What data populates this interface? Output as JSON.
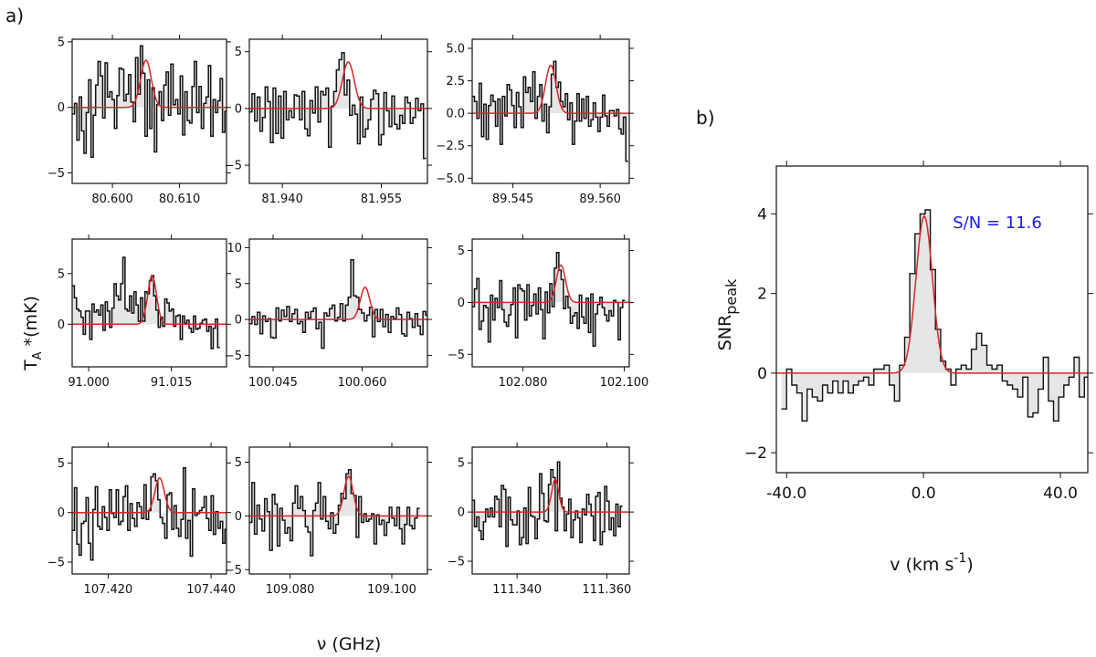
{
  "figure": {
    "label_a": "a)",
    "label_b": "b)",
    "ylabel_main": "TA*(mK)",
    "ylabel_main_parts": {
      "t": "T",
      "sub": "A",
      "rest": " *(mK)"
    },
    "xlabel_main": "ν (GHz)",
    "colors": {
      "spectrum": "#111111",
      "fill": "#e6e6e6",
      "fit": "#d62728",
      "annotation": "#1a1aff"
    }
  },
  "chart_data": [
    {
      "type": "line",
      "panel": "a1",
      "xlabel": "",
      "ylabel": "",
      "xlim": [
        80.594,
        80.617
      ],
      "ylim": [
        -5.8,
        5.2
      ],
      "xticks": [
        80.6,
        80.61
      ],
      "xtick_labels": [
        "80.600",
        "80.610"
      ],
      "yticks": [
        -5,
        0,
        5
      ],
      "ytick_labels": [
        "−5",
        "0",
        "5"
      ],
      "fit": {
        "center": 80.605,
        "amplitude": 3.6,
        "sigma": 0.0008
      },
      "series": [
        {
          "x_start": 80.594,
          "x_step": 0.00035,
          "values": [
            -0.5,
            0.3,
            -2.5,
            0.8,
            -1.8,
            -3.5,
            -0.4,
            2.1,
            -3.8,
            -0.6,
            1.7,
            3.5,
            2.4,
            -0.8,
            3.4,
            0.8,
            1.2,
            0.6,
            -1.6,
            0.9,
            3.0,
            2.9,
            0.5,
            1.0,
            2.5,
            0.4,
            -1.1,
            3.8,
            1.0,
            4.7,
            2.6,
            -2.2,
            2.1,
            -1.6,
            1.5,
            -3.4,
            0.2,
            1.2,
            -1.0,
            1.7,
            2.7,
            -0.6,
            3.3,
            0.2,
            0.6,
            -0.5,
            2.4,
            -2.1,
            1.2,
            -1.0,
            -1.2,
            1.6,
            3.5,
            -0.4,
            1.6,
            -1.6,
            0.3,
            0.8,
            3.2,
            -2.2,
            0.6,
            -0.4,
            0.5,
            2.2,
            -1.9,
            -0.3
          ]
        }
      ]
    },
    {
      "type": "line",
      "panel": "a2",
      "xlabel": "",
      "ylabel": "",
      "xlim": [
        81.935,
        81.962
      ],
      "ylim": [
        -6.6,
        6.1
      ],
      "xticks": [
        81.94,
        81.955
      ],
      "xtick_labels": [
        "81.940",
        "81.955"
      ],
      "yticks": [
        -5,
        0,
        5
      ],
      "ytick_labels": [
        "−5",
        "0",
        "5"
      ],
      "fit": {
        "center": 81.95,
        "amplitude": 4.1,
        "sigma": 0.0009
      },
      "series": [
        {
          "x_start": 81.935,
          "x_step": 0.0004,
          "values": [
            -0.3,
            1.3,
            -1.1,
            1.0,
            -2.0,
            -0.8,
            1.9,
            0.6,
            -3.0,
            1.8,
            -2.2,
            1.1,
            -2.6,
            1.5,
            -1.0,
            -0.2,
            -0.8,
            1.2,
            1.1,
            -1.0,
            1.5,
            -1.8,
            -2.4,
            0.7,
            -0.4,
            1.9,
            -1.2,
            1.5,
            1.2,
            1.8,
            -3.4,
            0.2,
            1.5,
            3.4,
            4.3,
            4.9,
            1.2,
            2.5,
            -0.6,
            0.3,
            -0.5,
            -3.1,
            1.0,
            -2.5,
            -1.8,
            -1.0,
            0.8,
            1.6,
            1.3,
            -3.2,
            -2.3,
            1.4,
            -0.2,
            -1.6,
            1.1,
            -1.4,
            -1.8,
            -0.6,
            -1.3,
            1.0,
            0.5,
            -1.3,
            -0.8,
            0.9,
            -0.2,
            0.4,
            -4.4
          ]
        }
      ]
    },
    {
      "type": "line",
      "panel": "a3",
      "xlabel": "",
      "ylabel": "",
      "xlim": [
        89.538,
        89.565
      ],
      "ylim": [
        -5.4,
        5.7
      ],
      "xticks": [
        89.545,
        89.56
      ],
      "xtick_labels": [
        "89.545",
        "89.560"
      ],
      "yticks": [
        -5,
        -2.5,
        0,
        2.5,
        5
      ],
      "ytick_labels": [
        "−5.0",
        "−2.5",
        "0.0",
        "2.5",
        "5.0"
      ],
      "fit": {
        "center": 89.5515,
        "amplitude": 3.7,
        "sigma": 0.0009
      },
      "series": [
        {
          "x_start": 89.538,
          "x_step": 0.0004,
          "values": [
            1.3,
            0.9,
            -0.4,
            2.3,
            -1.8,
            0.7,
            -2.0,
            0.6,
            1.4,
            0.9,
            -1.0,
            1.1,
            -2.4,
            1.3,
            -0.2,
            2.2,
            1.8,
            0.6,
            -1.1,
            1.6,
            0.5,
            -1.1,
            2.8,
            1.6,
            2.0,
            0.9,
            3.2,
            -0.4,
            1.3,
            2.2,
            -0.6,
            0.7,
            -1.5,
            0.5,
            3.0,
            4.0,
            2.0,
            2.4,
            0.9,
            0.5,
            1.5,
            -0.5,
            0.8,
            -2.4,
            -0.6,
            1.5,
            -0.6,
            1.1,
            -0.4,
            1.3,
            -1.0,
            -0.5,
            0.8,
            -0.3,
            -1.4,
            -0.3,
            1.4,
            -0.2,
            -1.0,
            0.2,
            0.2,
            -0.2,
            0.3,
            -1.2,
            -1.6,
            -0.3,
            -3.7
          ]
        }
      ]
    },
    {
      "type": "line",
      "panel": "a4",
      "xlabel": "",
      "ylabel": "",
      "xlim": [
        90.997,
        91.025
      ],
      "ylim": [
        -4.2,
        8.4
      ],
      "xticks": [
        91.0,
        91.015
      ],
      "xtick_labels": [
        "91.000",
        "91.015"
      ],
      "yticks": [
        0,
        5
      ],
      "ytick_labels": [
        "0",
        "5"
      ],
      "fit": {
        "center": 91.0115,
        "amplitude": 4.8,
        "sigma": 0.0008
      },
      "series": [
        {
          "x_start": 90.997,
          "x_step": 0.0004,
          "values": [
            3.8,
            2.6,
            1.5,
            1.3,
            0.7,
            -1.0,
            1.3,
            1.3,
            -1.5,
            2.0,
            1.2,
            1.4,
            0.9,
            1.9,
            -0.6,
            2.2,
            1.3,
            -0.3,
            1.6,
            4.0,
            2.8,
            2.4,
            4.0,
            6.6,
            1.5,
            1.3,
            2.8,
            1.1,
            3.2,
            1.9,
            0.3,
            2.6,
            0.3,
            3.2,
            3.0,
            4.3,
            4.8,
            2.8,
            1.4,
            -0.3,
            0.7,
            -0.2,
            2.5,
            2.1,
            1.3,
            1.5,
            -0.2,
            0.8,
            0.9,
            -1.5,
            0.8,
            0.1,
            0.4,
            -0.4,
            -0.8,
            0.8,
            -0.5,
            -0.4,
            0.1,
            0.4,
            0.5,
            -0.7,
            -0.2,
            -2.4,
            -0.4,
            0.5,
            -2.3
          ]
        }
      ]
    },
    {
      "type": "line",
      "panel": "a5",
      "xlabel": "",
      "ylabel": "",
      "xlim": [
        100.041,
        100.071
      ],
      "ylim": [
        -6.6,
        11.2
      ],
      "xticks": [
        100.045,
        100.06
      ],
      "xtick_labels": [
        "100.045",
        "100.060"
      ],
      "yticks": [
        -5,
        0,
        5,
        10
      ],
      "ytick_labels": [
        "−5",
        "0",
        "5",
        "10"
      ],
      "fit": {
        "center": 100.0605,
        "amplitude": 4.5,
        "sigma": 0.0008
      },
      "series": [
        {
          "x_start": 100.041,
          "x_step": 0.00045,
          "values": [
            -0.6,
            0.4,
            -0.7,
            1.0,
            -2.0,
            0.5,
            -0.3,
            0.1,
            -2.5,
            -2.6,
            1.6,
            -0.2,
            1.3,
            0.4,
            1.8,
            -0.3,
            0.8,
            1.4,
            -0.6,
            -0.3,
            -1.8,
            1.0,
            0.2,
            1.1,
            1.6,
            -1.3,
            -0.4,
            -4.0,
            0.9,
            0.5,
            1.5,
            2.0,
            -0.2,
            0.3,
            2.2,
            -0.2,
            2.0,
            3.1,
            8.3,
            3.3,
            3.1,
            1.4,
            0.9,
            -0.2,
            0.6,
            1.7,
            -2.4,
            1.4,
            -0.3,
            1.4,
            -1.0,
            0.7,
            -1.8,
            0.4,
            0.1,
            1.6,
            0.7,
            -2.0,
            -2.3,
            1.0,
            0.1,
            -1.1,
            0.8,
            -0.9,
            -2.1,
            1.1,
            0.6
          ]
        }
      ]
    },
    {
      "type": "line",
      "panel": "a6",
      "xlabel": "",
      "ylabel": "",
      "xlim": [
        102.07,
        102.101
      ],
      "ylim": [
        -6.2,
        6.1
      ],
      "xticks": [
        102.08,
        102.1
      ],
      "xtick_labels": [
        "102.080",
        "102.100"
      ],
      "yticks": [
        -5,
        0,
        5
      ],
      "ytick_labels": [
        "−5",
        "0",
        "5"
      ],
      "fit": {
        "center": 102.0875,
        "amplitude": 3.6,
        "sigma": 0.0009
      },
      "series": [
        {
          "x_start": 102.07,
          "x_step": 0.00045,
          "values": [
            -0.4,
            1.3,
            2.3,
            -2.6,
            -1.8,
            -0.3,
            -0.5,
            -3.8,
            0.7,
            -1.7,
            0.4,
            -0.5,
            2.1,
            -0.7,
            -1.9,
            -2.3,
            -1.2,
            -0.2,
            1.4,
            -3.4,
            1.7,
            1.3,
            1.1,
            -1.7,
            1.7,
            -1.3,
            -0.3,
            0.8,
            -1.1,
            1.4,
            -0.7,
            -3.5,
            1.0,
            -1.0,
            1.8,
            -0.4,
            3.3,
            4.8,
            3.1,
            2.2,
            -0.6,
            0.6,
            -0.5,
            -2.0,
            -1.3,
            -1.0,
            -2.5,
            0.7,
            -1.4,
            -2.0,
            0.4,
            -2.9,
            0.8,
            -4.2,
            -1.1,
            -0.2,
            0.5,
            -0.5,
            -1.2,
            -1.8,
            -0.8,
            -1.3,
            0.2,
            0.0,
            -3.6,
            -0.5,
            0.2
          ]
        }
      ]
    },
    {
      "type": "line",
      "panel": "a7",
      "xlabel": "",
      "ylabel": "",
      "xlim": [
        107.413,
        107.443
      ],
      "ylim": [
        -6.2,
        6.6
      ],
      "xticks": [
        107.42,
        107.44
      ],
      "xtick_labels": [
        "107.420",
        "107.440"
      ],
      "yticks": [
        -5,
        0,
        5
      ],
      "ytick_labels": [
        "−5",
        "0",
        "5"
      ],
      "fit": {
        "center": 107.43,
        "amplitude": 3.5,
        "sigma": 0.0009
      },
      "series": [
        {
          "x_start": 107.413,
          "x_step": 0.00045,
          "values": [
            -1.8,
            2.5,
            -3.2,
            -4.3,
            -1.1,
            -0.9,
            1.5,
            -3.1,
            -4.8,
            0.3,
            2.6,
            -1.4,
            -1.7,
            0.6,
            -0.5,
            -1.8,
            2.3,
            -0.1,
            -0.5,
            2.3,
            -1.2,
            -0.9,
            1.6,
            2.7,
            -1.8,
            0.9,
            -0.6,
            -1.4,
            1.0,
            0.6,
            -0.6,
            2.8,
            -0.7,
            0.2,
            3.6,
            3.9,
            3.2,
            1.3,
            -0.5,
            -1.1,
            -2.6,
            1.8,
            2.0,
            -1.7,
            0.7,
            -1.6,
            -2.4,
            -0.7,
            4.5,
            -2.6,
            -0.8,
            -4.4,
            2.4,
            -0.3,
            -0.1,
            0.2,
            0.5,
            1.6,
            -0.6,
            -1.8,
            1.7,
            -2.2,
            0.1,
            -1.6,
            -0.9,
            -3.1,
            -1.7
          ]
        }
      ]
    },
    {
      "type": "line",
      "panel": "a8",
      "xlabel": "",
      "ylabel": "",
      "xlim": [
        109.072,
        109.107
      ],
      "ylim": [
        -5.4,
        6.4
      ],
      "xticks": [
        109.08,
        109.1
      ],
      "xtick_labels": [
        "109.080",
        "109.100"
      ],
      "yticks": [
        -5,
        0,
        5
      ],
      "ytick_labels": [
        "−5",
        "0",
        "5"
      ],
      "fit": {
        "center": 109.0915,
        "amplitude": 3.7,
        "sigma": 0.0009
      },
      "series": [
        {
          "x_start": 109.072,
          "x_step": 0.0005,
          "values": [
            -0.6,
            3.1,
            -1.7,
            1.0,
            -0.3,
            -1.4,
            1.6,
            0.4,
            -3.2,
            2.0,
            1.1,
            -2.8,
            0.7,
            -0.4,
            -1.6,
            -1.1,
            -2.3,
            1.2,
            2.8,
            0.7,
            1.8,
            0.5,
            -1.0,
            -1.5,
            -3.7,
            0.5,
            1.2,
            3.1,
            -0.3,
            1.8,
            -0.5,
            -1.2,
            0.3,
            -1.6,
            -0.8,
            1.0,
            2.1,
            1.6,
            3.9,
            4.3,
            2.1,
            1.9,
            -2.0,
            1.8,
            -0.6,
            0.2,
            -0.5,
            -0.3,
            0.2,
            -2.6,
            0.1,
            -0.8,
            -0.4,
            -1.8,
            -0.6,
            0.8,
            -0.2,
            -0.9,
            0.8,
            -1.2,
            -2.6,
            -0.8,
            0.8,
            -0.9,
            -1.2,
            -0.2,
            0.7
          ]
        }
      ]
    },
    {
      "type": "line",
      "panel": "a9",
      "xlabel": "",
      "ylabel": "",
      "xlim": [
        111.33,
        111.365
      ],
      "ylim": [
        -6.3,
        6.6
      ],
      "xticks": [
        111.34,
        111.36
      ],
      "xtick_labels": [
        "111.340",
        "111.360"
      ],
      "yticks": [
        -5,
        0,
        5
      ],
      "ytick_labels": [
        "−5",
        "0",
        "5"
      ],
      "fit": {
        "center": 111.3485,
        "amplitude": 3.3,
        "sigma": 0.0008
      },
      "series": [
        {
          "x_start": 111.33,
          "x_step": 0.0005,
          "values": [
            1.2,
            -1.5,
            -0.5,
            -1.9,
            -2.8,
            -1.0,
            0.3,
            -0.5,
            0.4,
            -0.5,
            1.6,
            1.3,
            -1.5,
            2.7,
            2.3,
            -3.5,
            1.5,
            -0.8,
            -1.3,
            -1.3,
            0.1,
            -3.3,
            -2.6,
            0.4,
            -3.2,
            2.5,
            -0.4,
            -0.5,
            -2.7,
            -0.7,
            3.9,
            1.9,
            -0.9,
            -1.0,
            2.8,
            4.3,
            3.5,
            -1.9,
            5.1,
            1.4,
            0.5,
            -1.9,
            -0.2,
            1.3,
            -2.6,
            -0.8,
            0.1,
            -0.6,
            -3.1,
            0.3,
            -0.3,
            1.8,
            0.8,
            -0.4,
            -2.9,
            1.6,
            2.0,
            -3.3,
            -2.0,
            2.6,
            1.1,
            -1.8,
            -0.6,
            -2.4,
            0.8,
            -1.5,
            0.6
          ]
        }
      ]
    },
    {
      "type": "line",
      "panel": "b",
      "xlabel": "v (km s-1)",
      "xlabel_parts": {
        "main": "v (km s",
        "sup": "-1",
        "close": ")"
      },
      "ylabel": "SNR peak",
      "ylabel_parts": {
        "main": "SNR",
        "sub": "peak"
      },
      "annotation": "S/N = 11.6",
      "xlim": [
        -43,
        48
      ],
      "ylim": [
        -2.5,
        5.2
      ],
      "xticks": [
        -40,
        0,
        40
      ],
      "xtick_labels": [
        "-40.0",
        "0.0",
        "40.0"
      ],
      "yticks": [
        -2,
        0,
        2,
        4
      ],
      "ytick_labels": [
        "−2",
        "0",
        "2",
        "4"
      ],
      "fit": {
        "center": 0.2,
        "amplitude": 3.95,
        "sigma": 2.4
      },
      "series": [
        {
          "x_start": -41.5,
          "x_step": 1.5,
          "values": [
            -0.9,
            0.1,
            -0.3,
            -0.5,
            -1.2,
            -0.4,
            -0.6,
            -0.7,
            -0.3,
            -0.5,
            -0.2,
            -0.5,
            -0.2,
            -0.5,
            -0.3,
            -0.2,
            -0.1,
            -0.3,
            0.1,
            0.1,
            0.2,
            -0.3,
            -0.7,
            0.2,
            0.9,
            2.5,
            3.5,
            4.0,
            4.1,
            2.6,
            1.1,
            0.3,
            0.1,
            -0.3,
            0.1,
            0.2,
            0.1,
            0.6,
            1.0,
            0.7,
            0.2,
            0.1,
            0.2,
            -0.2,
            -0.3,
            -0.4,
            -0.6,
            -0.1,
            -1.1,
            -1.0,
            -0.4,
            0.4,
            -0.7,
            -1.2,
            -0.6,
            -0.3,
            -0.1,
            0.4,
            -0.6,
            -0.1
          ]
        }
      ]
    }
  ]
}
